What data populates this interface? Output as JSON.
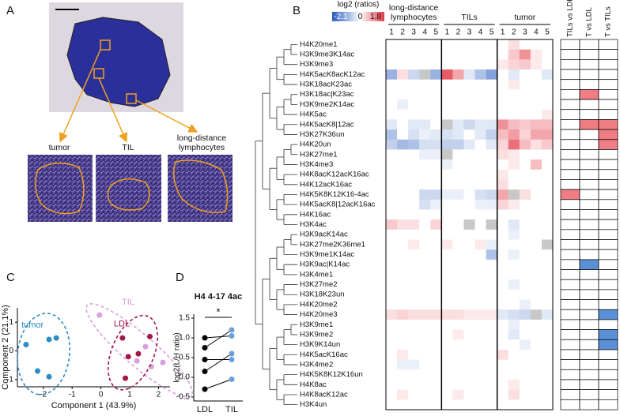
{
  "panel_labels": [
    "A",
    "B",
    "C",
    "D"
  ],
  "panel_a": {
    "regions": [
      "tumor",
      "TIL",
      "long-distance lymphocytes"
    ]
  },
  "chart_data": [
    {
      "type": "heatmap",
      "colorbar_title": "log2 (ratios)",
      "vmin": -2.1,
      "vmid": 0,
      "vmax": 1.8,
      "colors": [
        "#2a5cbf",
        "#ffffff",
        "#e23a46"
      ],
      "missing_color": "#c8c8c8",
      "groups": [
        "long-distance lymphocytes",
        "TILs",
        "tumor"
      ],
      "columns": [
        1,
        2,
        3,
        4,
        5,
        1,
        2,
        3,
        4,
        5,
        1,
        2,
        3,
        4,
        5
      ],
      "rows": [
        "H4K20me1",
        "H3K9me3K14ac",
        "H3K9me3",
        "H4K5acK8acK12ac",
        "H3K18acK23ac",
        "H3K18ac|K23ac",
        "H3K9me2K14ac",
        "H4K5ac",
        "H4K5acK8|12ac",
        "H3K27K36un",
        "H4K20un",
        "H3K27me1",
        "H3K4me3",
        "H4K8acK12acK16ac",
        "H4K12acK16ac",
        "H4K5K8K12K16-4ac",
        "H4K5acK8|12acK16ac",
        "H4K16ac",
        "H3K4ac",
        "H3K9acK14ac",
        "H3K27me2K36me1",
        "H3K9me1K14ac",
        "H3K9ac|K14ac",
        "H3K4me1",
        "H3K27me2",
        "H3K18K23un",
        "H4K20me2",
        "H4K20me3",
        "H3K9me1",
        "H3K9me2",
        "H3K9K14un",
        "H4K5acK16ac",
        "H3K4me2",
        "H4K5K8K12K16un",
        "H4K8ac",
        "H4K8acK12ac",
        "H3K4un"
      ],
      "values": [
        [
          0,
          0,
          0,
          0,
          0,
          0,
          0,
          0,
          0,
          0,
          0,
          0.3,
          0,
          0,
          0
        ],
        [
          0,
          0,
          0,
          0,
          0,
          0,
          0,
          0,
          0,
          0,
          0,
          0.5,
          1.0,
          0.2,
          0
        ],
        [
          0,
          0,
          0,
          0,
          0,
          0,
          0,
          0,
          0,
          0,
          0.2,
          0.4,
          0.5,
          0.2,
          0
        ],
        [
          -1.0,
          0.3,
          -0.5,
          null,
          -1.0,
          1.5,
          0.8,
          -0.3,
          -0.8,
          -1.2,
          0,
          -0.3,
          0,
          0,
          -0.3
        ],
        [
          0,
          0,
          0,
          0,
          0,
          0,
          0,
          0,
          0,
          0,
          0,
          0.2,
          0,
          0,
          0
        ],
        [
          0,
          0,
          0,
          0,
          0,
          0,
          0,
          0,
          0,
          0,
          0,
          0,
          0,
          0,
          0
        ],
        [
          0,
          -0.2,
          0,
          0,
          0,
          0,
          0,
          0,
          0,
          0,
          0,
          0,
          0,
          0,
          0
        ],
        [
          0,
          0,
          0,
          0,
          0,
          0,
          0,
          0,
          0,
          0,
          0,
          0,
          0,
          0,
          0.2
        ],
        [
          -0.3,
          0,
          -0.3,
          -0.3,
          0,
          null,
          -0.3,
          -0.5,
          -0.3,
          -0.3,
          1.0,
          0.6,
          0.5,
          0.6,
          0.6
        ],
        [
          -0.8,
          0,
          -0.4,
          -0.2,
          -0.3,
          -0.4,
          -0.3,
          0,
          -0.3,
          -0.6,
          0.6,
          0.9,
          0.4,
          0.8,
          0.8
        ],
        [
          -0.6,
          -0.9,
          -0.8,
          -0.4,
          -0.4,
          -0.6,
          -0.6,
          -0.3,
          0,
          -0.3,
          0.4,
          1.3,
          0.6,
          0.3,
          0.5
        ],
        [
          0,
          0,
          0,
          -0.2,
          -0.2,
          null,
          0,
          0,
          0,
          0,
          0.3,
          0.2,
          0,
          0,
          0
        ],
        [
          0,
          0,
          0,
          0,
          0,
          -0.2,
          0,
          0,
          0,
          0,
          0,
          0.2,
          0,
          0.6,
          0
        ],
        [
          0,
          0,
          0,
          0,
          0,
          0,
          0,
          0,
          0,
          0,
          0.2,
          0,
          0,
          0,
          0
        ],
        [
          0,
          0,
          0,
          0,
          0,
          0,
          0,
          0,
          0,
          0,
          0.3,
          0,
          0,
          0,
          0
        ],
        [
          0,
          0,
          0,
          -0.5,
          -0.5,
          -0.2,
          -0.2,
          0,
          -0.4,
          -0.5,
          0.8,
          null,
          0.3,
          0,
          0
        ],
        [
          0,
          0,
          0,
          -0.4,
          -0.2,
          0,
          0,
          0,
          -0.2,
          -0.2,
          0.4,
          0.2,
          0,
          0,
          0
        ],
        [
          0,
          0,
          0,
          0,
          0,
          0,
          0,
          0,
          0,
          0,
          0,
          0,
          0,
          0,
          0
        ],
        [
          0.5,
          0.3,
          0.3,
          0,
          0.4,
          0,
          0,
          null,
          0,
          null,
          0,
          -0.3,
          0,
          0,
          0
        ],
        [
          0,
          0,
          0,
          0,
          0,
          0,
          0,
          0,
          0,
          0,
          0,
          -0.2,
          0,
          0,
          0
        ],
        [
          0,
          0,
          0.2,
          0,
          0,
          0.2,
          0,
          0,
          0.2,
          -0.2,
          0,
          0,
          0,
          0,
          null
        ],
        [
          0,
          0,
          0,
          0,
          0,
          0,
          0,
          0,
          0,
          -0.8,
          0,
          -0.2,
          0,
          0,
          0
        ],
        [
          0,
          0,
          0,
          0,
          0,
          0,
          0,
          0,
          0,
          0,
          0,
          0,
          0,
          0,
          0
        ],
        [
          0,
          0,
          0,
          0,
          0,
          0,
          0,
          0,
          0,
          0,
          0,
          0,
          0,
          0,
          0
        ],
        [
          0,
          0,
          0,
          0,
          0,
          0,
          0,
          0,
          0,
          0,
          0,
          -0.2,
          0,
          0,
          0
        ],
        [
          0,
          0,
          0,
          0,
          0,
          0,
          0,
          0,
          0,
          0,
          0,
          0,
          0,
          0,
          0
        ],
        [
          0,
          0,
          0,
          0,
          0,
          0,
          0,
          0,
          0,
          0,
          0,
          0,
          -0.2,
          0,
          0
        ],
        [
          0.3,
          0.4,
          0.3,
          0.3,
          0.3,
          0.3,
          0.3,
          0.2,
          0.2,
          0.2,
          -0.3,
          -0.4,
          -0.5,
          null,
          -0.3
        ],
        [
          0,
          0,
          0,
          0,
          0,
          0,
          0,
          0,
          0,
          0,
          0,
          -0.2,
          0,
          0,
          0
        ],
        [
          0,
          0,
          0,
          0,
          0,
          0,
          0.2,
          0,
          0,
          0,
          0,
          -0.3,
          0,
          0,
          0
        ],
        [
          0,
          0,
          0,
          0,
          0,
          0,
          0,
          0,
          0,
          0,
          0,
          0,
          -0.2,
          0,
          0
        ],
        [
          0,
          0.2,
          0,
          0,
          0,
          0,
          0,
          0,
          0,
          0,
          0.3,
          0,
          0,
          0,
          0
        ],
        [
          0,
          -0.2,
          -0.2,
          0,
          0,
          0,
          0,
          0,
          0,
          0,
          0,
          0,
          0,
          0,
          0
        ],
        [
          0,
          0,
          0,
          0,
          0,
          0,
          0,
          0,
          0,
          0,
          0,
          0,
          0,
          0,
          0
        ],
        [
          0,
          0,
          0,
          0,
          0,
          0,
          0,
          0,
          0,
          0,
          0,
          0.2,
          0,
          0,
          0
        ],
        [
          0,
          0.2,
          0,
          0,
          0,
          0,
          0.2,
          0,
          0,
          0,
          0,
          0.3,
          0,
          0,
          0
        ],
        [
          0,
          0,
          0,
          0,
          0,
          0,
          0,
          0,
          0,
          0,
          0,
          0,
          0,
          0,
          0
        ]
      ]
    },
    {
      "type": "significance",
      "columns": [
        "TILs vs LDL",
        "T vs LDL",
        "T vs TILs"
      ],
      "colors": [
        "#5b8fd6",
        "#ffffff",
        "#f07c84"
      ],
      "values": [
        [
          0,
          0,
          0
        ],
        [
          0,
          0,
          0
        ],
        [
          0,
          0,
          0
        ],
        [
          0,
          0,
          0
        ],
        [
          0,
          0,
          0
        ],
        [
          0,
          1,
          0
        ],
        [
          0,
          0,
          0
        ],
        [
          0,
          0,
          0
        ],
        [
          0,
          1,
          1
        ],
        [
          0,
          0,
          1
        ],
        [
          0,
          0,
          1
        ],
        [
          0,
          0,
          0
        ],
        [
          0,
          0,
          0
        ],
        [
          0,
          0,
          0
        ],
        [
          0,
          0,
          0
        ],
        [
          1,
          0,
          0
        ],
        [
          0,
          0,
          0
        ],
        [
          0,
          0,
          0
        ],
        [
          0,
          0,
          0
        ],
        [
          0,
          0,
          0
        ],
        [
          0,
          0,
          0
        ],
        [
          0,
          0,
          0
        ],
        [
          0,
          -1,
          0
        ],
        [
          0,
          0,
          0
        ],
        [
          0,
          0,
          0
        ],
        [
          0,
          0,
          0
        ],
        [
          0,
          0,
          0
        ],
        [
          0,
          0,
          -1
        ],
        [
          0,
          0,
          0
        ],
        [
          0,
          0,
          -1
        ],
        [
          0,
          0,
          -1
        ],
        [
          0,
          0,
          0
        ],
        [
          0,
          0,
          0
        ],
        [
          0,
          0,
          0
        ],
        [
          0,
          0,
          0
        ],
        [
          0,
          0,
          0
        ],
        [
          0,
          0,
          0
        ]
      ]
    },
    {
      "type": "scatter",
      "xlabel": "Component 1 (43.9%)",
      "ylabel": "Component 2 (21.1%)",
      "xlim": [
        -2.9,
        2.4
      ],
      "ylim": [
        -1.25,
        1.5
      ],
      "xticks": [
        -2,
        -1,
        0,
        1,
        2
      ],
      "yticks": [
        -1,
        0,
        1
      ],
      "series": [
        {
          "name": "tumor",
          "color": "#2b8cc4",
          "x": [
            -2.6,
            -2.2,
            -1.8,
            -1.55,
            -1.8
          ],
          "y": [
            0.22,
            -0.7,
            0.4,
            0.45,
            -0.9
          ]
        },
        {
          "name": "TIL",
          "color": "#d9a0dc",
          "x": [
            -0.05,
            1.25,
            1.55,
            2.15,
            1.75
          ],
          "y": [
            1.25,
            -0.35,
            0.15,
            -0.4,
            -0.55
          ]
        },
        {
          "name": "LDL",
          "color": "#a3174a",
          "x": [
            0.75,
            1.7,
            1.3,
            0.95,
            0.85
          ],
          "y": [
            0.45,
            0.5,
            -0.1,
            -0.2,
            -0.95
          ]
        }
      ]
    },
    {
      "type": "paired",
      "title": "H4 4-17 4ac",
      "ylabel": "log2(L/H ratio)",
      "annotation": "*",
      "categories": [
        "LDL",
        "TIL"
      ],
      "colors": [
        "#000000",
        "#6a9fd8"
      ],
      "ylim": [
        -0.6,
        1.6
      ],
      "yticks": [
        -0.5,
        {
          "value": 0,
          "label": "0.0"
        },
        0.5,
        {
          "value": 1,
          "label": "1.0"
        },
        1.5
      ],
      "values": [
        [
          1.0,
          0.75,
          0.45,
          0.15,
          -0.3
        ],
        [
          1.05,
          1.2,
          0.45,
          0.6,
          -0.05
        ]
      ]
    }
  ]
}
